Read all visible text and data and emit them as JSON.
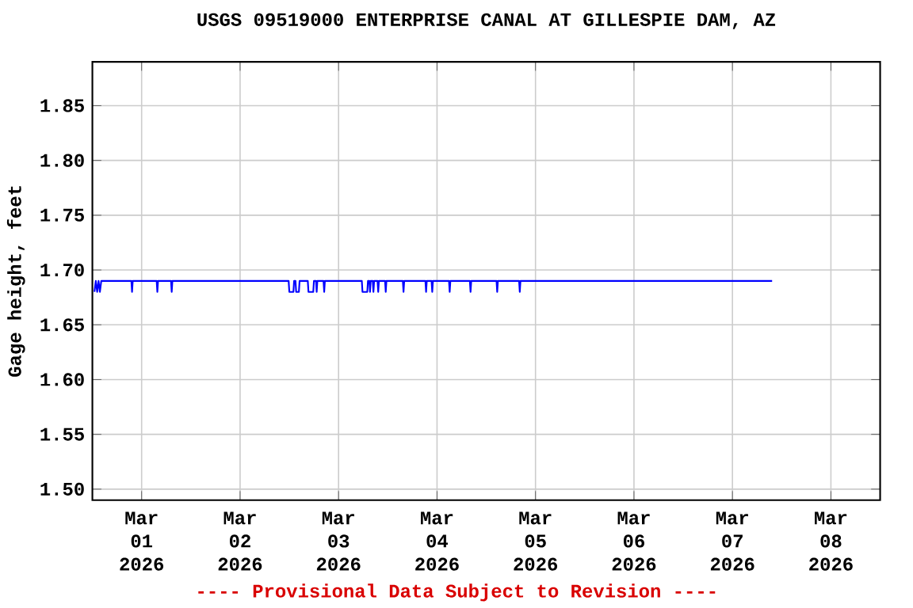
{
  "chart_data": {
    "type": "line",
    "title": "USGS 09519000 ENTERPRISE CANAL AT GILLESPIE DAM, AZ",
    "ylabel": "Gage height, feet",
    "annotations": [
      "---- Provisional Data Subject to Revision ----"
    ],
    "xlim": [
      "2026-02-28T12:00",
      "2026-03-08T12:00"
    ],
    "xticks": [
      {
        "value": "2026-03-01",
        "label": "Mar 01 2026"
      },
      {
        "value": "2026-03-02",
        "label": "Mar 02 2026"
      },
      {
        "value": "2026-03-03",
        "label": "Mar 03 2026"
      },
      {
        "value": "2026-03-04",
        "label": "Mar 04 2026"
      },
      {
        "value": "2026-03-05",
        "label": "Mar 05 2026"
      },
      {
        "value": "2026-03-06",
        "label": "Mar 06 2026"
      },
      {
        "value": "2026-03-07",
        "label": "Mar 07 2026"
      },
      {
        "value": "2026-03-08",
        "label": "Mar 08 2026"
      }
    ],
    "ylim": [
      1.49,
      1.89
    ],
    "yticks": [
      {
        "value": 1.5,
        "label": "1.50"
      },
      {
        "value": 1.55,
        "label": "1.55"
      },
      {
        "value": 1.6,
        "label": "1.60"
      },
      {
        "value": 1.65,
        "label": "1.65"
      },
      {
        "value": 1.7,
        "label": "1.70"
      },
      {
        "value": 1.75,
        "label": "1.75"
      },
      {
        "value": 1.8,
        "label": "1.80"
      },
      {
        "value": 1.85,
        "label": "1.85"
      }
    ],
    "grid": true,
    "marker": "none",
    "line_style": "solid",
    "series": [
      {
        "color": "#0000ff",
        "x": [
          "2026-02-28T12:30",
          "2026-02-28T12:50",
          "2026-02-28T13:10",
          "2026-02-28T13:30",
          "2026-02-28T13:50",
          "2026-02-28T14:10",
          "2026-02-28T21:30",
          "2026-02-28T21:40",
          "2026-02-28T21:50",
          "2026-03-01T03:40",
          "2026-03-01T03:50",
          "2026-03-01T04:00",
          "2026-03-01T07:10",
          "2026-03-01T07:20",
          "2026-03-01T07:30",
          "2026-03-02T11:50",
          "2026-03-02T12:00",
          "2026-03-02T13:00",
          "2026-03-02T13:10",
          "2026-03-02T13:30",
          "2026-03-02T13:40",
          "2026-03-02T14:20",
          "2026-03-02T14:30",
          "2026-03-02T16:30",
          "2026-03-02T16:40",
          "2026-03-02T17:50",
          "2026-03-02T18:00",
          "2026-03-02T18:30",
          "2026-03-02T18:40",
          "2026-03-02T18:50",
          "2026-03-02T20:20",
          "2026-03-02T20:30",
          "2026-03-02T20:40",
          "2026-03-03T05:40",
          "2026-03-03T05:50",
          "2026-03-03T07:00",
          "2026-03-03T07:10",
          "2026-03-03T07:30",
          "2026-03-03T07:40",
          "2026-03-03T07:50",
          "2026-03-03T08:20",
          "2026-03-03T08:30",
          "2026-03-03T08:40",
          "2026-03-03T09:30",
          "2026-03-03T09:40",
          "2026-03-03T09:50",
          "2026-03-03T11:20",
          "2026-03-03T11:30",
          "2026-03-03T11:40",
          "2026-03-03T15:40",
          "2026-03-03T15:50",
          "2026-03-03T16:00",
          "2026-03-03T21:10",
          "2026-03-03T21:20",
          "2026-03-03T21:30",
          "2026-03-03T22:40",
          "2026-03-03T22:50",
          "2026-03-03T23:00",
          "2026-03-04T02:55",
          "2026-03-04T03:05",
          "2026-03-04T03:15",
          "2026-03-04T08:00",
          "2026-03-04T08:10",
          "2026-03-04T08:20",
          "2026-03-04T14:30",
          "2026-03-04T14:40",
          "2026-03-04T14:50",
          "2026-03-04T20:00",
          "2026-03-04T20:10",
          "2026-03-04T20:20",
          "2026-03-07T09:40"
        ],
        "values": [
          1.68,
          1.69,
          1.68,
          1.69,
          1.68,
          1.69,
          1.69,
          1.68,
          1.69,
          1.69,
          1.68,
          1.69,
          1.69,
          1.68,
          1.69,
          1.69,
          1.68,
          1.68,
          1.69,
          1.69,
          1.68,
          1.68,
          1.69,
          1.69,
          1.68,
          1.68,
          1.69,
          1.69,
          1.68,
          1.69,
          1.69,
          1.68,
          1.69,
          1.69,
          1.68,
          1.68,
          1.69,
          1.69,
          1.68,
          1.69,
          1.69,
          1.68,
          1.69,
          1.69,
          1.68,
          1.69,
          1.69,
          1.68,
          1.69,
          1.69,
          1.68,
          1.69,
          1.69,
          1.68,
          1.69,
          1.69,
          1.68,
          1.69,
          1.69,
          1.68,
          1.69,
          1.69,
          1.68,
          1.69,
          1.69,
          1.68,
          1.69,
          1.69,
          1.68,
          1.69,
          1.69
        ]
      }
    ]
  }
}
